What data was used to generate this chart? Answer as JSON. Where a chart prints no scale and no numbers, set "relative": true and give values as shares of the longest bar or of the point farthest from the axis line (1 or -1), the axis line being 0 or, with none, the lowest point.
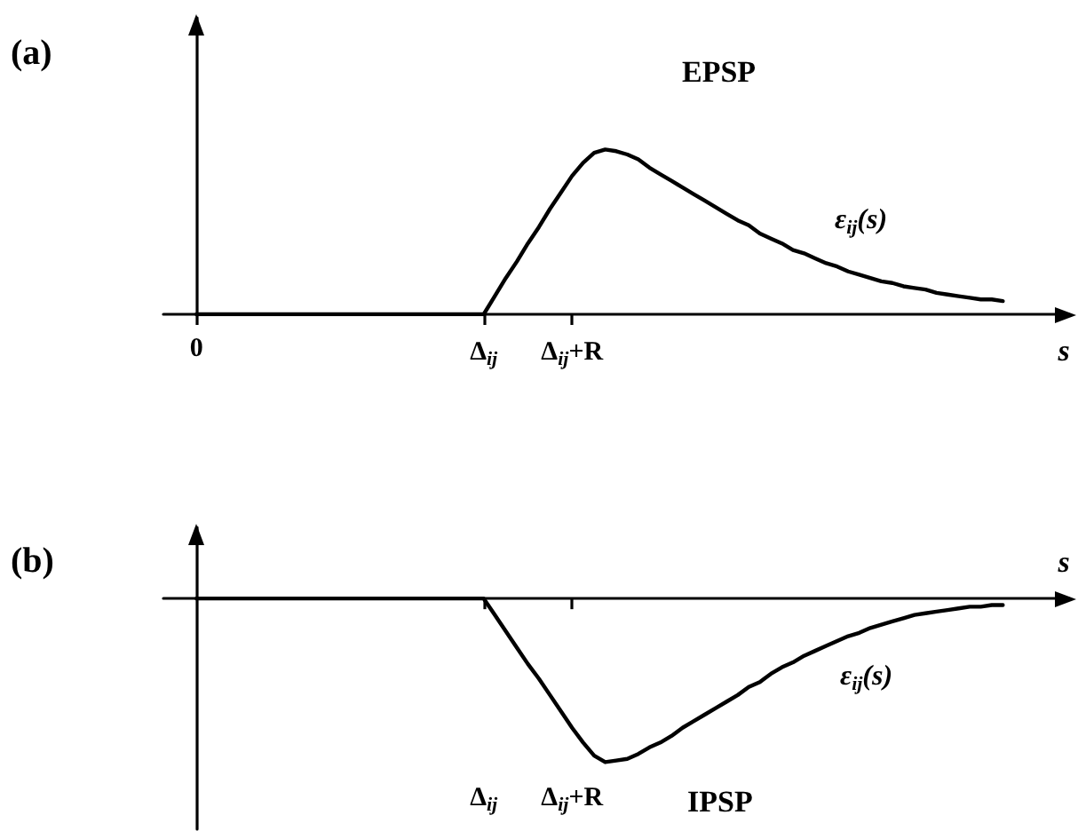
{
  "chart_data": [
    {
      "type": "line",
      "title": "(a)",
      "xlabel": "s",
      "annotations": [
        "EPSP"
      ],
      "relative": true,
      "marker": "none",
      "categories": [
        null,
        null,
        null,
        "0",
        null,
        null,
        null,
        null,
        null,
        null,
        null,
        null,
        null,
        null,
        null,
        null,
        null,
        null,
        null,
        null,
        null,
        null,
        null,
        null,
        null,
        null,
        null,
        null,
        null,
        "Δ$_{ij}$",
        null,
        null,
        null,
        null,
        null,
        null,
        null,
        "Δ$_{ij}$+R",
        null,
        null,
        null,
        null,
        null,
        null,
        null,
        null,
        null,
        null,
        null,
        null,
        null,
        null,
        null,
        null,
        null,
        null,
        null,
        null,
        null,
        null,
        null,
        null,
        null,
        null,
        null,
        null,
        null,
        null,
        null,
        null,
        null,
        null,
        null,
        null,
        null,
        null,
        null,
        null,
        null,
        null,
        null,
        null,
        null
      ],
      "series": [
        {
          "name": "ε$_{ij}$(s)",
          "color": "#000000",
          "values": [
            null,
            null,
            null,
            0,
            0,
            0,
            0,
            0,
            0,
            0,
            0,
            0,
            0,
            0,
            0,
            0,
            0,
            0,
            0,
            0,
            0,
            0,
            0,
            0,
            0,
            0,
            0,
            0,
            0,
            0,
            0.11,
            0.22,
            0.32,
            0.43,
            0.53,
            0.64,
            0.74,
            0.84,
            0.92,
            0.98,
            1,
            0.99,
            0.97,
            0.94,
            0.89,
            0.85,
            0.81,
            0.77,
            0.73,
            0.69,
            0.65,
            0.61,
            0.57,
            0.54,
            0.49,
            0.46,
            0.43,
            0.39,
            0.37,
            0.34,
            0.31,
            0.29,
            0.26,
            0.24,
            0.22,
            0.2,
            0.19,
            0.17,
            0.16,
            0.15,
            0.13,
            0.12,
            0.11,
            0.1,
            0.09,
            0.09,
            0.08,
            null,
            null,
            null,
            null,
            null,
            null
          ]
        }
      ]
    },
    {
      "type": "line",
      "title": "(b)",
      "xlabel": "s",
      "annotations": [
        "IPSP"
      ],
      "relative": true,
      "marker": "none",
      "categories": [
        null,
        null,
        null,
        null,
        null,
        null,
        null,
        null,
        null,
        null,
        null,
        null,
        null,
        null,
        null,
        null,
        null,
        null,
        null,
        null,
        null,
        null,
        null,
        null,
        null,
        null,
        null,
        null,
        null,
        "Δ$_{ij}$",
        null,
        null,
        null,
        null,
        null,
        null,
        null,
        "Δ$_{ij}$+R",
        null,
        null,
        null,
        null,
        null,
        null,
        null,
        null,
        null,
        null,
        null,
        null,
        null,
        null,
        null,
        null,
        null,
        null,
        null,
        null,
        null,
        null,
        null,
        null,
        null,
        null,
        null,
        null,
        null,
        null,
        null,
        null,
        null,
        null,
        null,
        null,
        null,
        null,
        null,
        null,
        null,
        null,
        null,
        null,
        null
      ],
      "series": [
        {
          "name": "ε$_{ij}$(s)",
          "color": "#000000",
          "values": [
            null,
            null,
            null,
            0,
            0,
            0,
            0,
            0,
            0,
            0,
            0,
            0,
            0,
            0,
            0,
            0,
            0,
            0,
            0,
            0,
            0,
            0,
            0,
            0,
            0,
            0,
            0,
            0,
            0,
            0,
            -0.1,
            -0.2,
            -0.3,
            -0.4,
            -0.49,
            -0.59,
            -0.69,
            -0.79,
            -0.88,
            -0.96,
            -1,
            -0.99,
            -0.98,
            -0.95,
            -0.91,
            -0.88,
            -0.84,
            -0.79,
            -0.75,
            -0.71,
            -0.67,
            -0.63,
            -0.59,
            -0.54,
            -0.51,
            -0.46,
            -0.42,
            -0.39,
            -0.35,
            -0.32,
            -0.29,
            -0.26,
            -0.23,
            -0.21,
            -0.18,
            -0.16,
            -0.14,
            -0.12,
            -0.1,
            -0.09,
            -0.08,
            -0.07,
            -0.06,
            -0.05,
            -0.05,
            -0.04,
            -0.04,
            null,
            null,
            null,
            null,
            null,
            null
          ]
        }
      ]
    }
  ]
}
